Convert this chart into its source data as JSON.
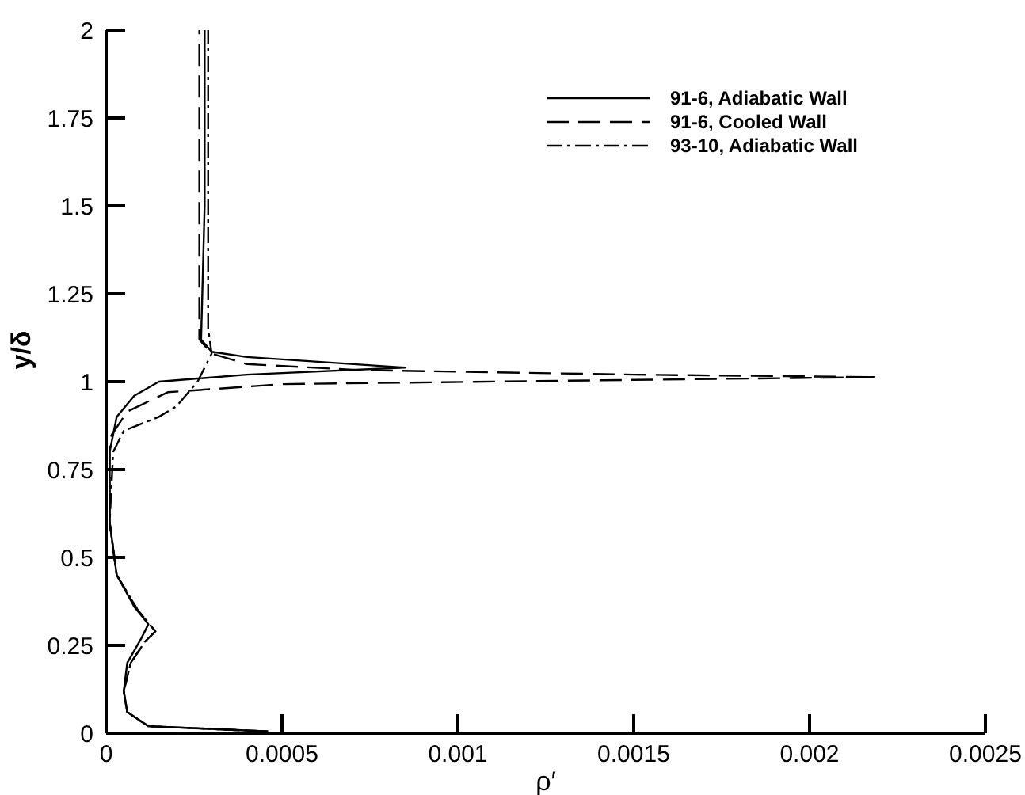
{
  "chart_data": {
    "type": "line",
    "xlabel": "ρ′",
    "ylabel": "y/δ",
    "xlim": [
      0,
      0.0025
    ],
    "xticks": [
      0,
      0.0005,
      0.001,
      0.0015,
      0.002,
      0.0025
    ],
    "ylim": [
      0,
      2
    ],
    "yticks": [
      0,
      0.25,
      0.5,
      0.75,
      1,
      1.25,
      1.5,
      1.75,
      2
    ],
    "legend": "top right",
    "grid": false,
    "series": [
      {
        "name": "91-6, Adiabatic Wall",
        "color": "#000000",
        "line_style": "solid",
        "x": [
          0.00046,
          0.00012,
          6e-05,
          5e-05,
          6e-05,
          0.0001,
          0.00012,
          8e-05,
          3e-05,
          1e-05,
          1e-05,
          3e-05,
          8e-05,
          0.00015,
          0.0004,
          0.00085,
          0.0004,
          0.0003,
          0.00027,
          0.00028,
          0.00028
        ],
        "values": [
          0.005,
          0.02,
          0.06,
          0.12,
          0.2,
          0.27,
          0.31,
          0.36,
          0.45,
          0.6,
          0.8,
          0.9,
          0.96,
          1.0,
          1.02,
          1.04,
          1.07,
          1.085,
          1.12,
          1.5,
          2
        ]
      },
      {
        "name": "91-6, Cooled Wall",
        "color": "#000000",
        "line_style": "dashed",
        "x": [
          0.00046,
          0.00012,
          6e-05,
          5e-05,
          7e-05,
          0.00011,
          0.00014,
          9e-05,
          3e-05,
          1e-05,
          1e-05,
          6e-05,
          0.000175,
          0.0005,
          0.0015,
          0.00219,
          0.0015,
          0.00072,
          0.0004,
          0.0003,
          0.000265,
          0.000265
        ],
        "values": [
          0.005,
          0.02,
          0.06,
          0.12,
          0.2,
          0.26,
          0.29,
          0.35,
          0.45,
          0.6,
          0.84,
          0.915,
          0.97,
          0.993,
          1.005,
          1.013,
          1.02,
          1.033,
          1.05,
          1.08,
          1.12,
          2
        ]
      },
      {
        "name": "93-10, Adiabatic Wall",
        "color": "#000000",
        "line_style": "dashdot",
        "x": [
          0.00046,
          0.00012,
          6e-05,
          5e-05,
          7e-05,
          0.00011,
          0.00014,
          9e-05,
          3e-05,
          1e-05,
          2e-05,
          5e-05,
          0.00015,
          0.0002,
          0.00026,
          0.0003,
          0.00029,
          0.00029
        ],
        "values": [
          0.005,
          0.02,
          0.06,
          0.12,
          0.2,
          0.26,
          0.29,
          0.35,
          0.45,
          0.6,
          0.8,
          0.86,
          0.9,
          0.93,
          1.0,
          1.08,
          1.15,
          2
        ]
      }
    ]
  }
}
